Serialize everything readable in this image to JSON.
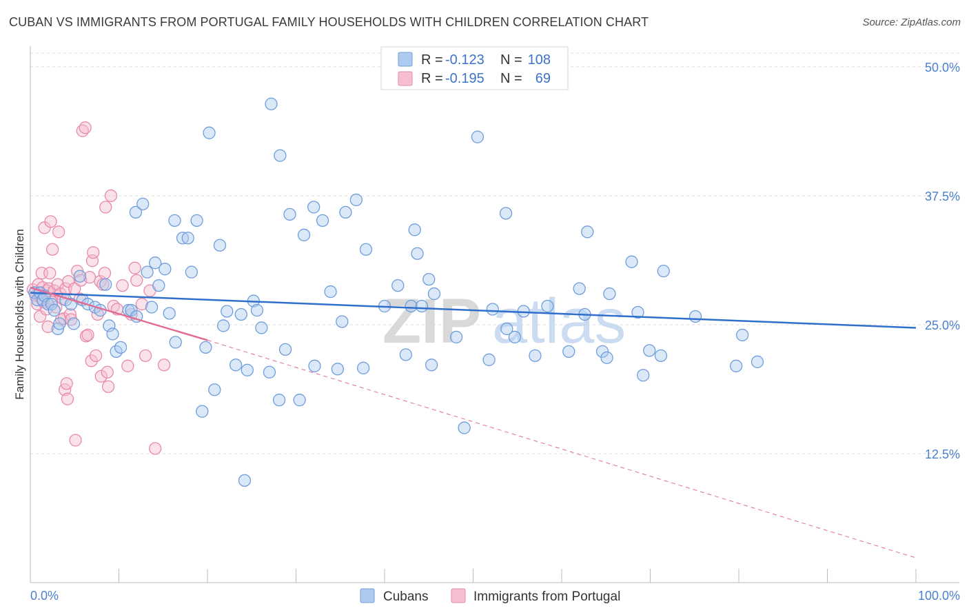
{
  "header": {
    "title": "CUBAN VS IMMIGRANTS FROM PORTUGAL FAMILY HOUSEHOLDS WITH CHILDREN CORRELATION CHART",
    "source": "Source: ZipAtlas.com"
  },
  "watermark": {
    "part1": "ZIP",
    "part2": "atlas"
  },
  "legend_box": {
    "rows": [
      {
        "r_label": "R =",
        "r_value": "-0.123",
        "n_label": "N =",
        "n_value": "108"
      },
      {
        "r_label": "R =",
        "r_value": "-0.195",
        "n_label": "N =",
        "n_value": "69"
      }
    ]
  },
  "colors": {
    "cubans_stroke": "#6f9ddb",
    "cubans_fill": "#aecbef",
    "portugal_stroke": "#e88aa9",
    "portugal_fill": "#f5bfd0",
    "cubans_line": "#2f6fcb",
    "portugal_line": "#e26b93",
    "tick_text": "#4a7fd0",
    "grid": "#dddddd"
  },
  "chart_data": {
    "type": "scatter",
    "title": "CUBAN VS IMMIGRANTS FROM PORTUGAL FAMILY HOUSEHOLDS WITH CHILDREN CORRELATION CHART",
    "xlabel": "",
    "ylabel": "Family Households with Children",
    "xlim": [
      0,
      100
    ],
    "ylim": [
      0,
      52
    ],
    "x_tick_labels": [
      "0.0%",
      "100.0%"
    ],
    "y_ticks": [
      12.5,
      25.0,
      37.5,
      50.0
    ],
    "y_tick_labels": [
      "12.5%",
      "25.0%",
      "37.5%",
      "50.0%"
    ],
    "grid": true,
    "legend_position": "bottom",
    "series": [
      {
        "name": "Cubans",
        "r": -0.123,
        "n": 108,
        "trend": {
          "x": [
            0,
            100
          ],
          "y": [
            28.1,
            24.7
          ],
          "dashed_extension": false
        },
        "points": [
          [
            0.5,
            28.1
          ],
          [
            0.8,
            27.4
          ],
          [
            1.1,
            28.1
          ],
          [
            1.4,
            27.4
          ],
          [
            1.6,
            27.8
          ],
          [
            2.0,
            27.0
          ],
          [
            2.4,
            27.0
          ],
          [
            2.7,
            26.4
          ],
          [
            3.1,
            24.6
          ],
          [
            3.3,
            25.1
          ],
          [
            4.0,
            27.4
          ],
          [
            4.6,
            27.0
          ],
          [
            4.9,
            25.1
          ],
          [
            5.6,
            29.7
          ],
          [
            5.9,
            27.4
          ],
          [
            6.5,
            27.0
          ],
          [
            7.3,
            26.7
          ],
          [
            7.9,
            26.4
          ],
          [
            8.5,
            28.9
          ],
          [
            8.9,
            24.9
          ],
          [
            9.3,
            24.1
          ],
          [
            9.7,
            22.4
          ],
          [
            10.2,
            22.8
          ],
          [
            11.1,
            26.4
          ],
          [
            11.4,
            26.4
          ],
          [
            12.0,
            25.8
          ],
          [
            11.9,
            35.9
          ],
          [
            12.7,
            36.7
          ],
          [
            13.2,
            30.1
          ],
          [
            13.7,
            26.7
          ],
          [
            14.1,
            31.0
          ],
          [
            14.5,
            28.8
          ],
          [
            15.2,
            30.4
          ],
          [
            15.7,
            26.1
          ],
          [
            16.3,
            35.1
          ],
          [
            16.4,
            23.3
          ],
          [
            17.2,
            33.4
          ],
          [
            17.8,
            33.4
          ],
          [
            18.2,
            30.1
          ],
          [
            18.8,
            35.1
          ],
          [
            19.4,
            16.6
          ],
          [
            19.8,
            22.8
          ],
          [
            20.2,
            43.6
          ],
          [
            20.8,
            18.7
          ],
          [
            21.4,
            32.7
          ],
          [
            21.8,
            24.9
          ],
          [
            22.2,
            26.3
          ],
          [
            23.2,
            21.1
          ],
          [
            23.8,
            26.0
          ],
          [
            24.2,
            9.9
          ],
          [
            24.5,
            20.6
          ],
          [
            25.2,
            27.3
          ],
          [
            25.6,
            26.4
          ],
          [
            26.1,
            24.7
          ],
          [
            27.2,
            46.4
          ],
          [
            27.0,
            20.4
          ],
          [
            28.1,
            17.7
          ],
          [
            28.2,
            41.4
          ],
          [
            28.8,
            22.6
          ],
          [
            29.3,
            35.7
          ],
          [
            30.4,
            17.7
          ],
          [
            30.9,
            33.7
          ],
          [
            32.0,
            36.4
          ],
          [
            32.1,
            21.0
          ],
          [
            33.0,
            35.1
          ],
          [
            33.9,
            28.2
          ],
          [
            34.7,
            20.7
          ],
          [
            35.2,
            25.3
          ],
          [
            35.6,
            35.9
          ],
          [
            36.8,
            37.1
          ],
          [
            37.6,
            20.8
          ],
          [
            37.9,
            32.3
          ],
          [
            40.0,
            26.8
          ],
          [
            41.5,
            28.8
          ],
          [
            42.4,
            22.1
          ],
          [
            43.0,
            26.8
          ],
          [
            43.4,
            34.2
          ],
          [
            43.7,
            31.9
          ],
          [
            44.2,
            26.8
          ],
          [
            45.0,
            29.4
          ],
          [
            45.3,
            21.1
          ],
          [
            45.6,
            28.0
          ],
          [
            48.1,
            23.8
          ],
          [
            49.0,
            15.0
          ],
          [
            50.5,
            43.2
          ],
          [
            51.8,
            21.6
          ],
          [
            52.2,
            26.5
          ],
          [
            53.7,
            35.8
          ],
          [
            53.8,
            24.6
          ],
          [
            54.7,
            23.8
          ],
          [
            55.7,
            26.3
          ],
          [
            57.0,
            22.0
          ],
          [
            58.4,
            26.8
          ],
          [
            60.8,
            22.4
          ],
          [
            62.0,
            28.5
          ],
          [
            62.6,
            26.0
          ],
          [
            62.9,
            34.0
          ],
          [
            64.6,
            22.4
          ],
          [
            65.1,
            21.8
          ],
          [
            65.4,
            28.0
          ],
          [
            67.9,
            31.1
          ],
          [
            68.6,
            26.2
          ],
          [
            69.2,
            20.1
          ],
          [
            69.9,
            22.5
          ],
          [
            71.2,
            22.0
          ],
          [
            71.5,
            30.2
          ],
          [
            75.1,
            25.8
          ],
          [
            79.7,
            21.0
          ],
          [
            80.4,
            24.0
          ],
          [
            82.1,
            21.4
          ]
        ]
      },
      {
        "name": "Immigrants from Portugal",
        "r": -0.195,
        "n": 69,
        "trend": {
          "x": [
            0,
            20
          ],
          "y": [
            28.6,
            23.5
          ],
          "dashed_extension": {
            "x": [
              20,
              100
            ],
            "y": [
              23.5,
              2.4
            ]
          }
        },
        "points": [
          [
            0.3,
            28.4
          ],
          [
            0.6,
            27.8
          ],
          [
            0.8,
            27.0
          ],
          [
            0.9,
            28.9
          ],
          [
            1.0,
            28.0
          ],
          [
            1.1,
            25.8
          ],
          [
            1.2,
            27.6
          ],
          [
            1.3,
            30.0
          ],
          [
            1.4,
            28.6
          ],
          [
            1.5,
            27.2
          ],
          [
            1.6,
            34.4
          ],
          [
            1.8,
            26.5
          ],
          [
            1.9,
            28.3
          ],
          [
            2.0,
            24.8
          ],
          [
            2.1,
            28.5
          ],
          [
            2.2,
            30.0
          ],
          [
            2.3,
            35.0
          ],
          [
            2.4,
            27.2
          ],
          [
            2.5,
            32.3
          ],
          [
            2.7,
            28.3
          ],
          [
            2.9,
            26.7
          ],
          [
            3.1,
            28.9
          ],
          [
            3.2,
            34.0
          ],
          [
            3.4,
            28.0
          ],
          [
            3.5,
            25.5
          ],
          [
            3.7,
            27.5
          ],
          [
            3.8,
            25.6
          ],
          [
            3.9,
            18.7
          ],
          [
            4.0,
            28.5
          ],
          [
            4.1,
            19.3
          ],
          [
            4.2,
            17.8
          ],
          [
            4.3,
            29.2
          ],
          [
            4.5,
            26.0
          ],
          [
            4.6,
            25.5
          ],
          [
            5.0,
            28.5
          ],
          [
            5.1,
            13.8
          ],
          [
            5.3,
            30.2
          ],
          [
            5.6,
            27.5
          ],
          [
            5.7,
            29.3
          ],
          [
            5.9,
            43.8
          ],
          [
            6.2,
            44.1
          ],
          [
            6.3,
            23.9
          ],
          [
            6.5,
            24.0
          ],
          [
            6.7,
            29.6
          ],
          [
            6.9,
            21.5
          ],
          [
            7.0,
            31.2
          ],
          [
            7.1,
            32.0
          ],
          [
            7.4,
            22.0
          ],
          [
            7.6,
            26.0
          ],
          [
            7.9,
            29.2
          ],
          [
            8.0,
            20.0
          ],
          [
            8.4,
            30.0
          ],
          [
            8.5,
            36.4
          ],
          [
            8.7,
            20.4
          ],
          [
            8.8,
            19.0
          ],
          [
            9.1,
            37.5
          ],
          [
            9.4,
            26.8
          ],
          [
            9.8,
            26.5
          ],
          [
            10.4,
            28.8
          ],
          [
            11.0,
            21.0
          ],
          [
            11.4,
            26.0
          ],
          [
            11.8,
            30.5
          ],
          [
            12.0,
            29.3
          ],
          [
            12.6,
            27.0
          ],
          [
            13.0,
            22.0
          ],
          [
            13.5,
            28.3
          ],
          [
            14.1,
            13.0
          ],
          [
            15.1,
            21.1
          ],
          [
            8.2,
            28.9
          ]
        ]
      }
    ]
  },
  "bottom_legend": {
    "items": [
      "Cubans",
      "Immigrants from Portugal"
    ]
  }
}
